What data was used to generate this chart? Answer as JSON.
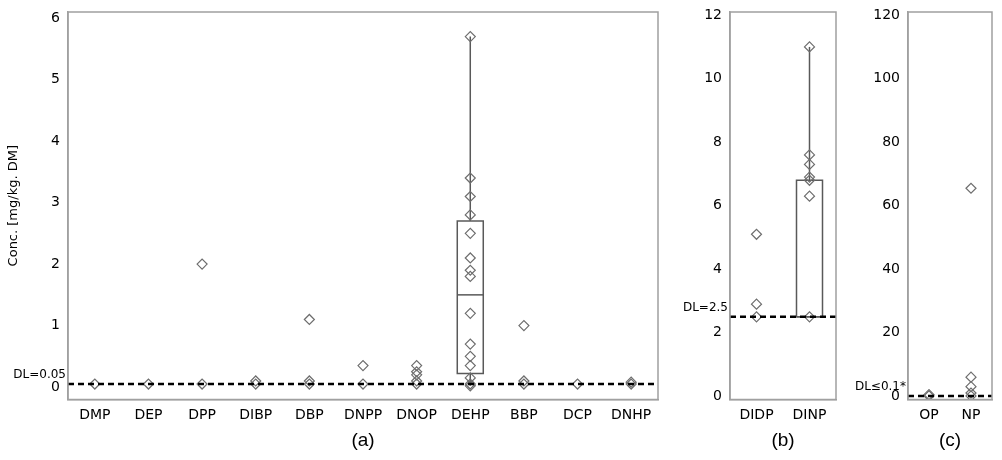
{
  "chart_data": [
    {
      "type": "box",
      "xlabel": "(a)",
      "ylabel": "Conc. [mg/kg. DM]",
      "categories": [
        "DMP",
        "DEP",
        "DPP",
        "DIBP",
        "DBP",
        "DNPP",
        "DNOP",
        "DEHP",
        "BBP",
        "DCP",
        "DNHP"
      ],
      "series": [
        {
          "type": "box",
          "color": "#595959",
          "boxes": [
            null,
            null,
            null,
            null,
            null,
            null,
            null,
            {
              "low": 0.02,
              "q1": 0.22,
              "median": 1.5,
              "q3": 2.7,
              "high": 5.7
            },
            null,
            null,
            null
          ]
        },
        {
          "type": "scatter",
          "color": "#6e6e6e",
          "x": [
            "DMP",
            "DEP",
            "DPP",
            "DPP",
            "DIBP",
            "DIBP",
            "DBP",
            "DBP",
            "DBP",
            "DNPP",
            "DNPP",
            "DNOP",
            "DNOP",
            "DNOP",
            "DNOP",
            "DNOP",
            "DEHP",
            "DEHP",
            "DEHP",
            "DEHP",
            "DEHP",
            "DEHP",
            "DEHP",
            "DEHP",
            "DEHP",
            "DEHP",
            "DEHP",
            "DEHP",
            "DEHP",
            "DEHP",
            "DEHP",
            "BBP",
            "BBP",
            "BBP",
            "DCP",
            "DNHP",
            "DNHP"
          ],
          "values": [
            0.05,
            0.05,
            0.05,
            2.0,
            0.05,
            0.1,
            0.05,
            0.1,
            1.1,
            0.05,
            0.35,
            0.05,
            0.1,
            0.2,
            0.25,
            0.35,
            5.7,
            3.4,
            3.1,
            2.8,
            2.5,
            2.1,
            1.9,
            1.8,
            1.2,
            0.7,
            0.5,
            0.35,
            0.15,
            0.05,
            0.02,
            0.05,
            0.1,
            1.0,
            0.05,
            0.05,
            0.08
          ]
        }
      ],
      "ylim": [
        -0.2,
        6.1
      ],
      "yticks": [
        0,
        1,
        2,
        3,
        4,
        5,
        6
      ],
      "marker": "diamond",
      "ref_lines": [
        {
          "axis": "y",
          "value": 0.05,
          "label": "DL=0.05",
          "color": "#000000",
          "line_style": "dashed"
        }
      ]
    },
    {
      "type": "box",
      "xlabel": "(b)",
      "categories": [
        "DIDP",
        "DINP"
      ],
      "series": [
        {
          "type": "box",
          "color": "#595959",
          "boxes": [
            null,
            {
              "low": 2.5,
              "q1": 2.5,
              "median": 2.5,
              "q3": 6.8,
              "high": 11
            }
          ]
        },
        {
          "type": "scatter",
          "color": "#6e6e6e",
          "x": [
            "DIDP",
            "DIDP",
            "DIDP",
            "DINP",
            "DINP",
            "DINP",
            "DINP",
            "DINP",
            "DINP",
            "DINP"
          ],
          "values": [
            2.5,
            2.9,
            5.1,
            11,
            7.6,
            7.3,
            6.9,
            6.8,
            6.3,
            2.5
          ]
        }
      ],
      "ylim": [
        -0.1,
        12.1
      ],
      "yticks": [
        0,
        2,
        4,
        6,
        8,
        10,
        12
      ],
      "marker": "diamond",
      "ref_lines": [
        {
          "axis": "y",
          "value": 2.5,
          "label": "DL=2.5",
          "color": "#000000",
          "line_style": "dashed"
        }
      ]
    },
    {
      "type": "box",
      "xlabel": "(c)",
      "categories": [
        "OP",
        "NP"
      ],
      "series": [
        {
          "type": "scatter",
          "color": "#6e6e6e",
          "x": [
            "OP",
            "OP",
            "NP",
            "NP",
            "NP",
            "NP",
            "NP"
          ],
          "values": [
            0.1,
            0.5,
            65.5,
            6,
            3,
            1,
            0.1
          ]
        }
      ],
      "ylim": [
        -1,
        121
      ],
      "yticks": [
        0,
        20,
        40,
        60,
        80,
        100,
        120
      ],
      "marker": "diamond",
      "ref_lines": [
        {
          "axis": "y",
          "value": 0.1,
          "label": "DL≤0.1*",
          "color": "#000000",
          "line_style": "dashed"
        }
      ]
    }
  ]
}
